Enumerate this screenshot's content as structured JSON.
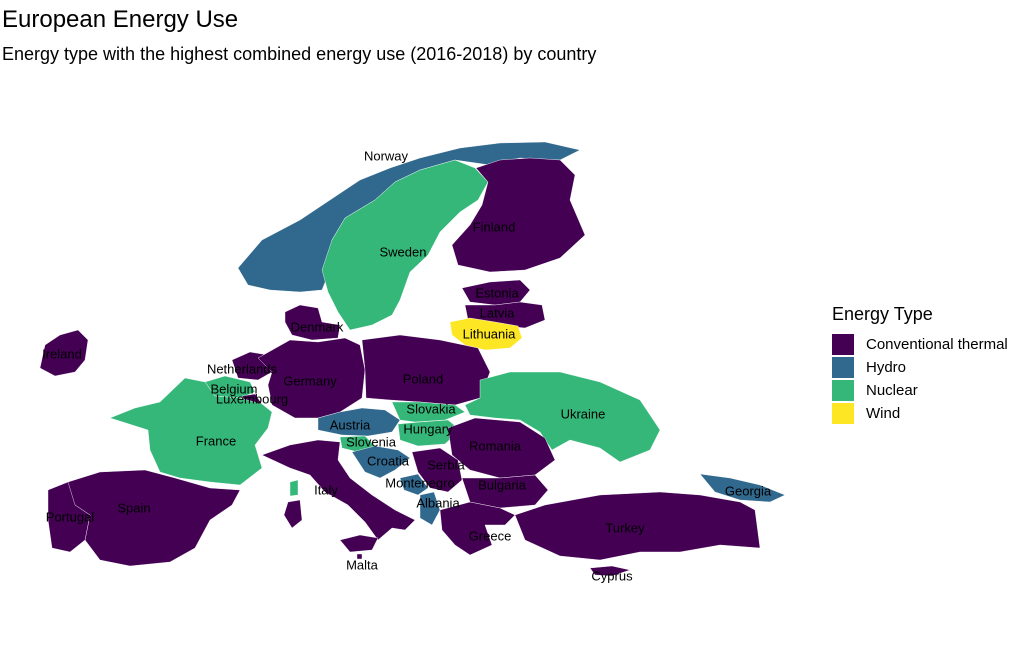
{
  "title": "European Energy Use",
  "subtitle": "Energy type with the highest combined energy use (2016-2018) by country",
  "legend": {
    "title": "Energy Type",
    "items": [
      {
        "label": "Conventional thermal",
        "color": "#440154"
      },
      {
        "label": "Hydro",
        "color": "#31688E"
      },
      {
        "label": "Nuclear",
        "color": "#35B779"
      },
      {
        "label": "Wind",
        "color": "#FDE725"
      }
    ]
  },
  "countries": [
    {
      "name": "Norway",
      "type": "Hydro"
    },
    {
      "name": "Sweden",
      "type": "Nuclear"
    },
    {
      "name": "Finland",
      "type": "Conventional thermal"
    },
    {
      "name": "Estonia",
      "type": "Conventional thermal"
    },
    {
      "name": "Latvia",
      "type": "Conventional thermal"
    },
    {
      "name": "Lithuania",
      "type": "Wind"
    },
    {
      "name": "Denmark",
      "type": "Conventional thermal"
    },
    {
      "name": "Ireland",
      "type": "Conventional thermal"
    },
    {
      "name": "Netherlands",
      "type": "Conventional thermal"
    },
    {
      "name": "Belgium",
      "type": "Nuclear"
    },
    {
      "name": "Luxembourg",
      "type": "Conventional thermal"
    },
    {
      "name": "Germany",
      "type": "Conventional thermal"
    },
    {
      "name": "Poland",
      "type": "Conventional thermal"
    },
    {
      "name": "France",
      "type": "Nuclear"
    },
    {
      "name": "Austria",
      "type": "Hydro"
    },
    {
      "name": "Slovakia",
      "type": "Nuclear"
    },
    {
      "name": "Hungary",
      "type": "Nuclear"
    },
    {
      "name": "Ukraine",
      "type": "Nuclear"
    },
    {
      "name": "Slovenia",
      "type": "Nuclear"
    },
    {
      "name": "Croatia",
      "type": "Hydro"
    },
    {
      "name": "Romania",
      "type": "Conventional thermal"
    },
    {
      "name": "Serbia",
      "type": "Conventional thermal"
    },
    {
      "name": "Montenegro",
      "type": "Hydro"
    },
    {
      "name": "Albania",
      "type": "Hydro"
    },
    {
      "name": "Bulgaria",
      "type": "Conventional thermal"
    },
    {
      "name": "Italy",
      "type": "Conventional thermal"
    },
    {
      "name": "Spain",
      "type": "Conventional thermal"
    },
    {
      "name": "Portugal",
      "type": "Conventional thermal"
    },
    {
      "name": "Greece",
      "type": "Conventional thermal"
    },
    {
      "name": "Turkey",
      "type": "Conventional thermal"
    },
    {
      "name": "Georgia",
      "type": "Hydro"
    },
    {
      "name": "Malta",
      "type": "Conventional thermal"
    },
    {
      "name": "Cyprus",
      "type": "Conventional thermal"
    }
  ]
}
